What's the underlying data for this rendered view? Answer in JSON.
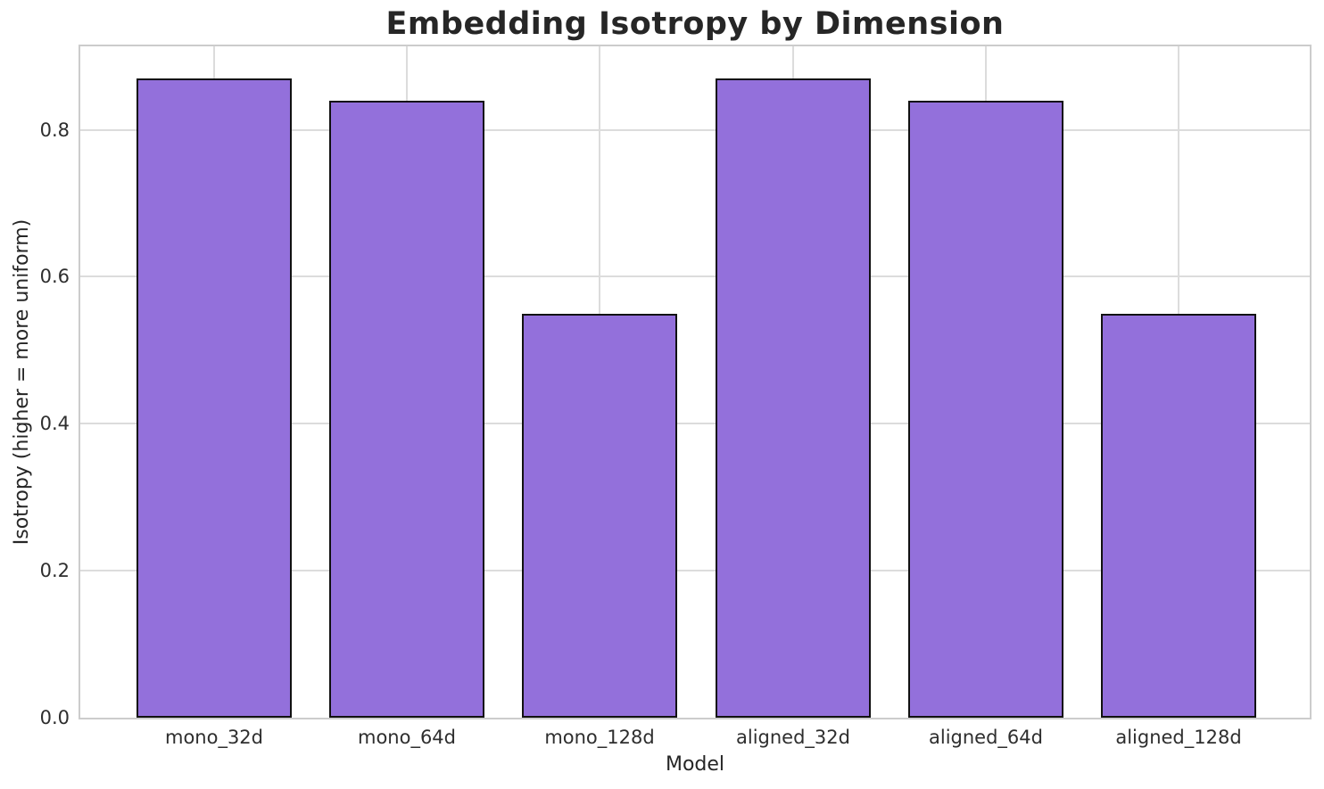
{
  "chart_data": {
    "type": "bar",
    "title": "Embedding Isotropy by Dimension",
    "xlabel": "Model",
    "ylabel": "Isotropy (higher = more uniform)",
    "categories": [
      "mono_32d",
      "mono_64d",
      "mono_128d",
      "aligned_32d",
      "aligned_64d",
      "aligned_128d"
    ],
    "values": [
      0.87,
      0.84,
      0.55,
      0.87,
      0.84,
      0.55
    ],
    "ylim": [
      0,
      0.9135
    ],
    "yticks": [
      0.0,
      0.2,
      0.4,
      0.6,
      0.8
    ],
    "ytick_labels": [
      "0.0",
      "0.2",
      "0.4",
      "0.6",
      "0.8"
    ],
    "grid": true,
    "legend": false,
    "bar_width_fraction": 0.8,
    "colors": {
      "bar_fill": "#9370DB",
      "bar_edge": "#111111",
      "grid": "#dcdcdc",
      "spine": "#cccccc",
      "title_text": "#262626",
      "tick_text": "#2e2e2e",
      "background": "#ffffff"
    }
  }
}
